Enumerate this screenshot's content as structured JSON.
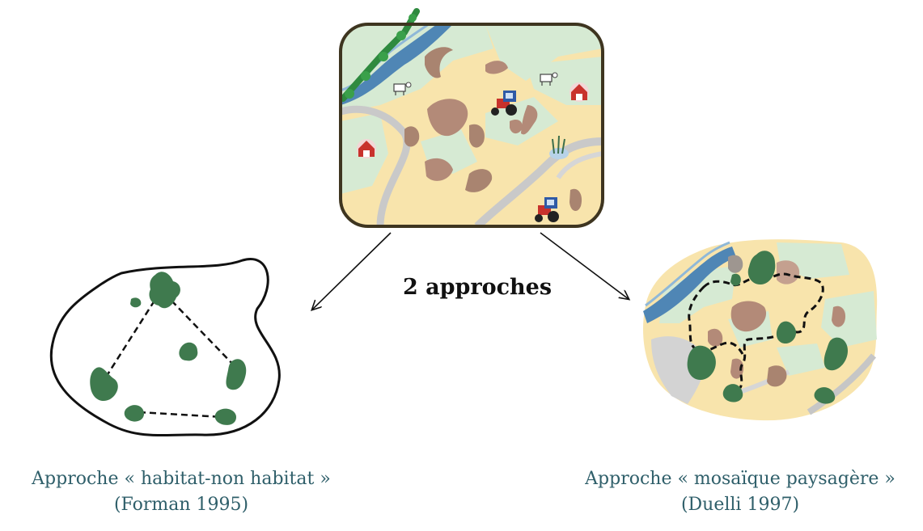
{
  "center_label": "2 approches",
  "left_caption": {
    "title": "Approche « habitat-non habitat »",
    "citation": "(Forman 1995)"
  },
  "right_caption": {
    "title": "Approche « mosaïque paysagère »",
    "citation": "(Duelli 1997)"
  },
  "colors": {
    "patch_green": "#3f7a4e",
    "river_blue": "#4f86b5",
    "field_yellow": "#f8e4ac",
    "meadow_green": "#d6ead3",
    "crop_brown": "#b38a78",
    "frame_dark": "#3e3520",
    "caption_teal": "#2f5f6a",
    "tractor_red": "#c8322c",
    "tractor_blue": "#2f5aa6"
  },
  "icons": [
    "tractor-icon",
    "barn-icon",
    "cow-icon",
    "tree-icon",
    "reed-icon"
  ]
}
